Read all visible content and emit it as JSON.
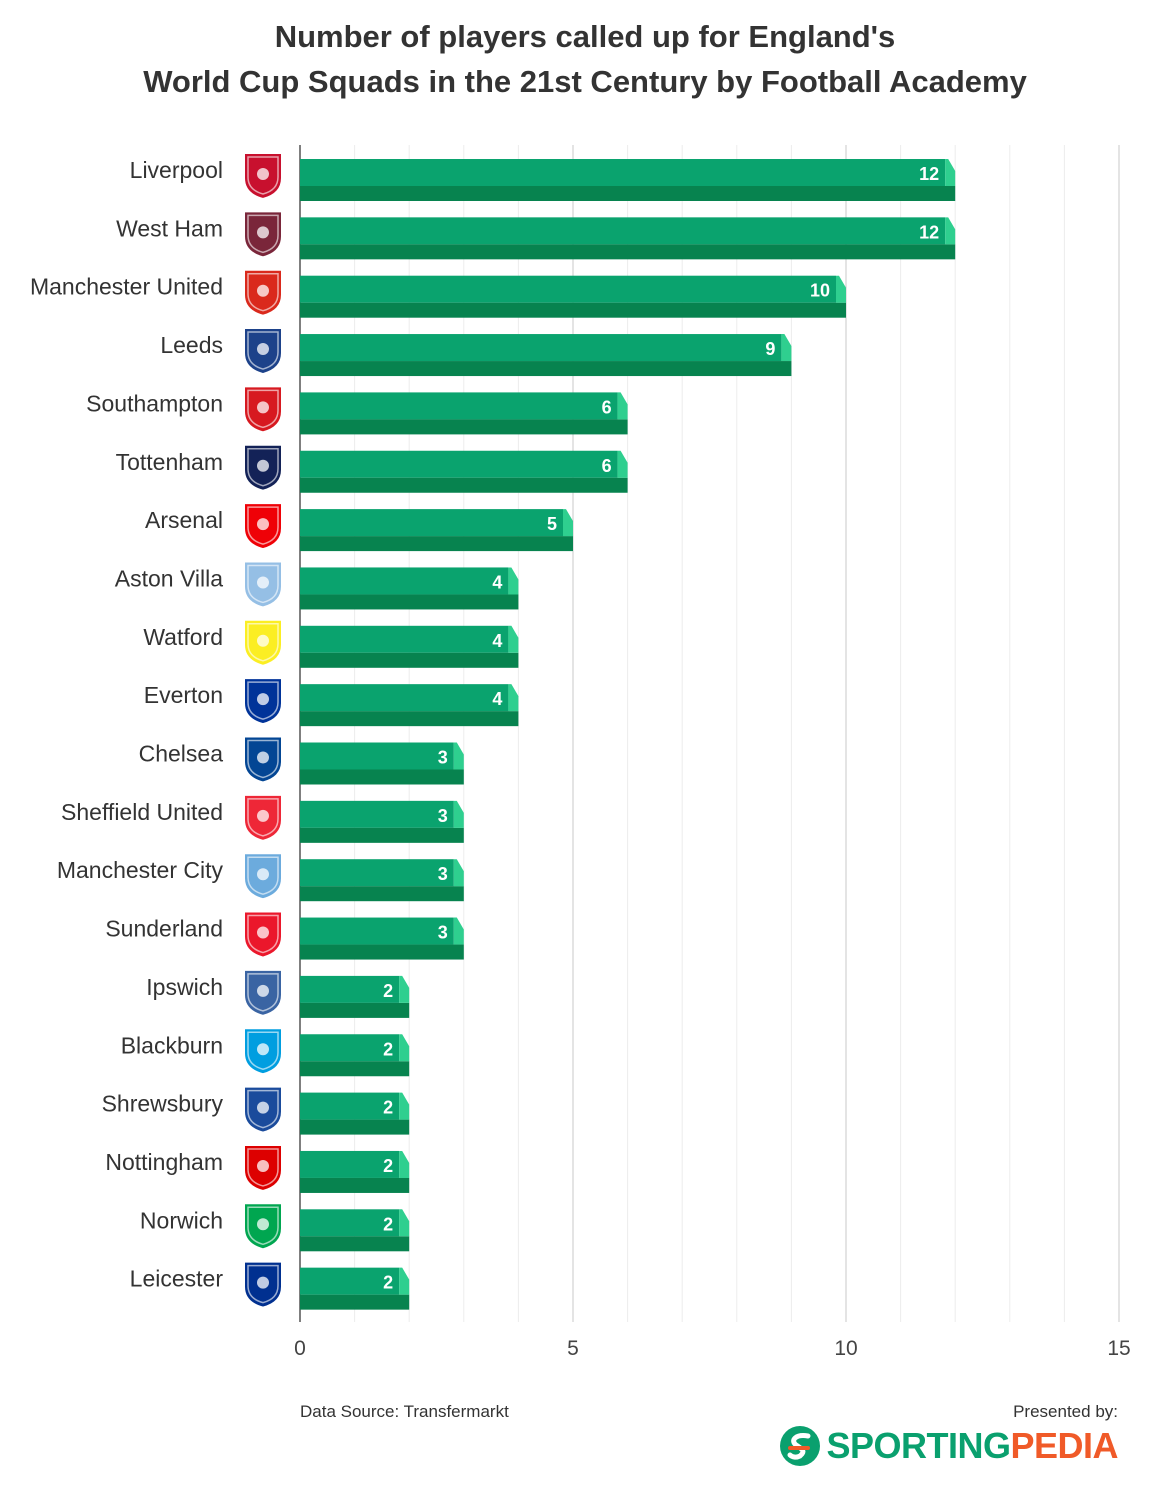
{
  "chart_data": {
    "type": "bar",
    "orientation": "horizontal",
    "title": "Number of players called up for England's World Cup Squads in the 21st Century by Football Academy",
    "title_lines": [
      "Number of players called up for England's",
      "World Cup Squads in the 21st Century by Football Academy"
    ],
    "categories": [
      "Liverpool",
      "West Ham",
      "Manchester United",
      "Leeds",
      "Southampton",
      "Tottenham",
      "Arsenal",
      "Aston Villa",
      "Watford",
      "Everton",
      "Chelsea",
      "Sheffield United",
      "Manchester City",
      "Sunderland",
      "Ipswich",
      "Blackburn",
      "Shrewsbury",
      "Nottingham",
      "Norwich",
      "Leicester"
    ],
    "values": [
      12,
      12,
      10,
      9,
      6,
      6,
      5,
      4,
      4,
      4,
      3,
      3,
      3,
      3,
      2,
      2,
      2,
      2,
      2,
      2
    ],
    "badge_colors": [
      "#c8102e",
      "#7a263a",
      "#da291c",
      "#1d428a",
      "#d71920",
      "#132257",
      "#ef0107",
      "#95bfe5",
      "#fbee23",
      "#003399",
      "#034694",
      "#ee2737",
      "#6cabdd",
      "#eb172b",
      "#3a64a3",
      "#009ee0",
      "#1a4b9c",
      "#dd0000",
      "#00a650",
      "#003090"
    ],
    "xlim": [
      0,
      15
    ],
    "xticks": [
      0,
      5,
      10,
      15
    ],
    "grid": true,
    "bar_color": "#0aa36e",
    "bar_shadow_color": "#07834f",
    "bar_tip_color": "#2fcf8f"
  },
  "footer": {
    "source": "Data Source: Transfermarkt",
    "presented_by": "Presented by:",
    "brand_part1": "SPORTING",
    "brand_part2": "PEDIA"
  }
}
